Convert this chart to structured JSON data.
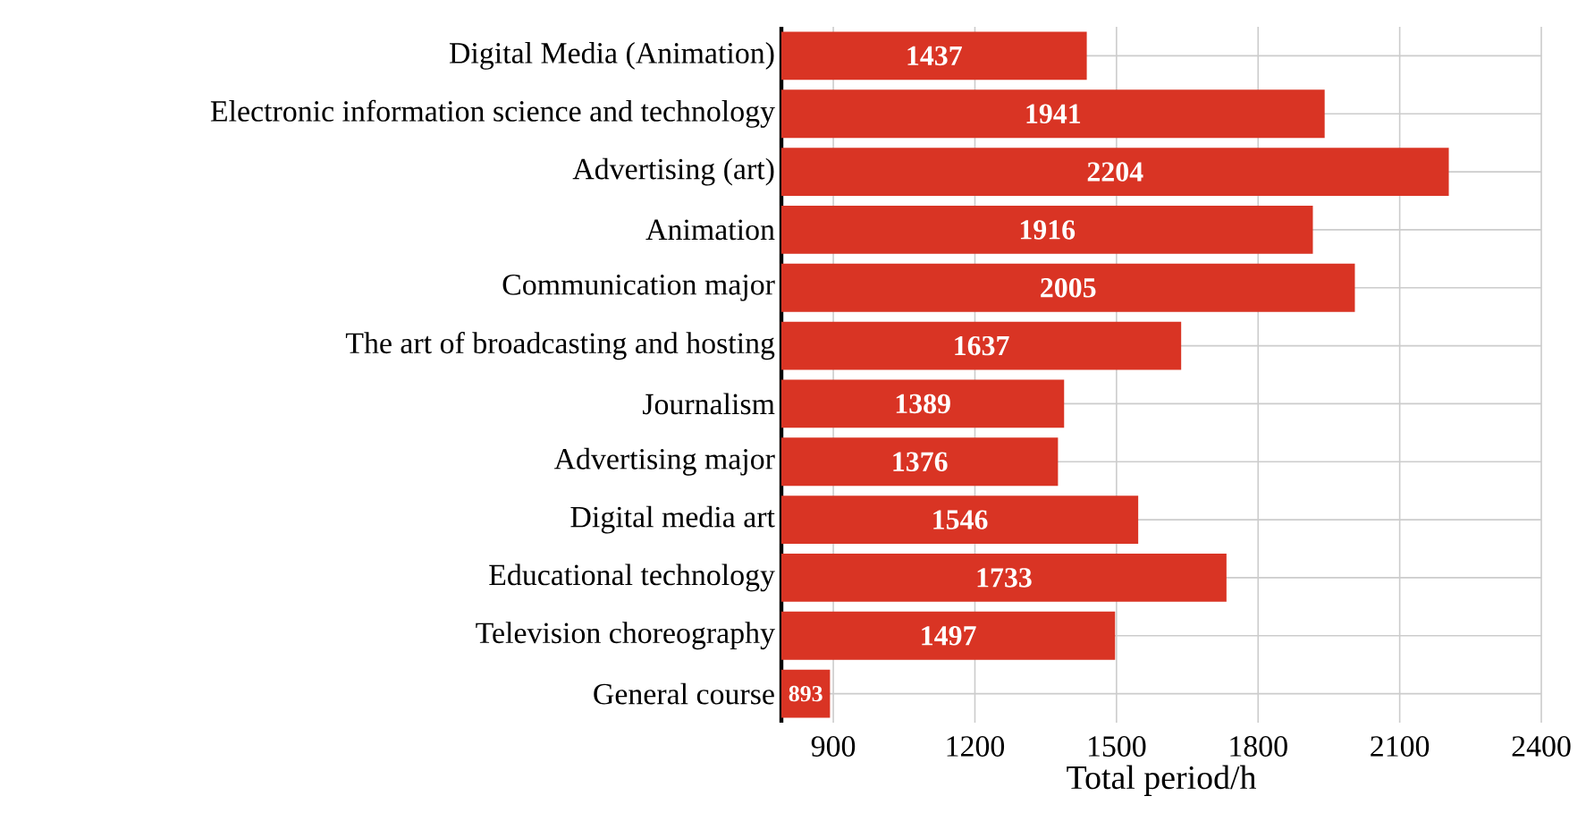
{
  "chart_data": {
    "type": "bar",
    "orientation": "horizontal",
    "xlabel": "Total period/h",
    "categories": [
      "Digital Media (Animation)",
      "Electronic information science and technology",
      "Advertising (art)",
      "Animation",
      "Communication major",
      "The art of broadcasting and hosting",
      "Journalism",
      "Advertising major",
      "Digital media art",
      "Educational technology",
      "Television choreography",
      "General course"
    ],
    "values": [
      1437,
      1941,
      2204,
      1916,
      2005,
      1637,
      1389,
      1376,
      1546,
      1733,
      1497,
      893
    ],
    "color": "#d93424",
    "data_labels": true,
    "grid": true,
    "xlim": [
      790,
      2400
    ],
    "xticks": [
      900,
      1200,
      1500,
      1800,
      2100,
      2400
    ]
  }
}
